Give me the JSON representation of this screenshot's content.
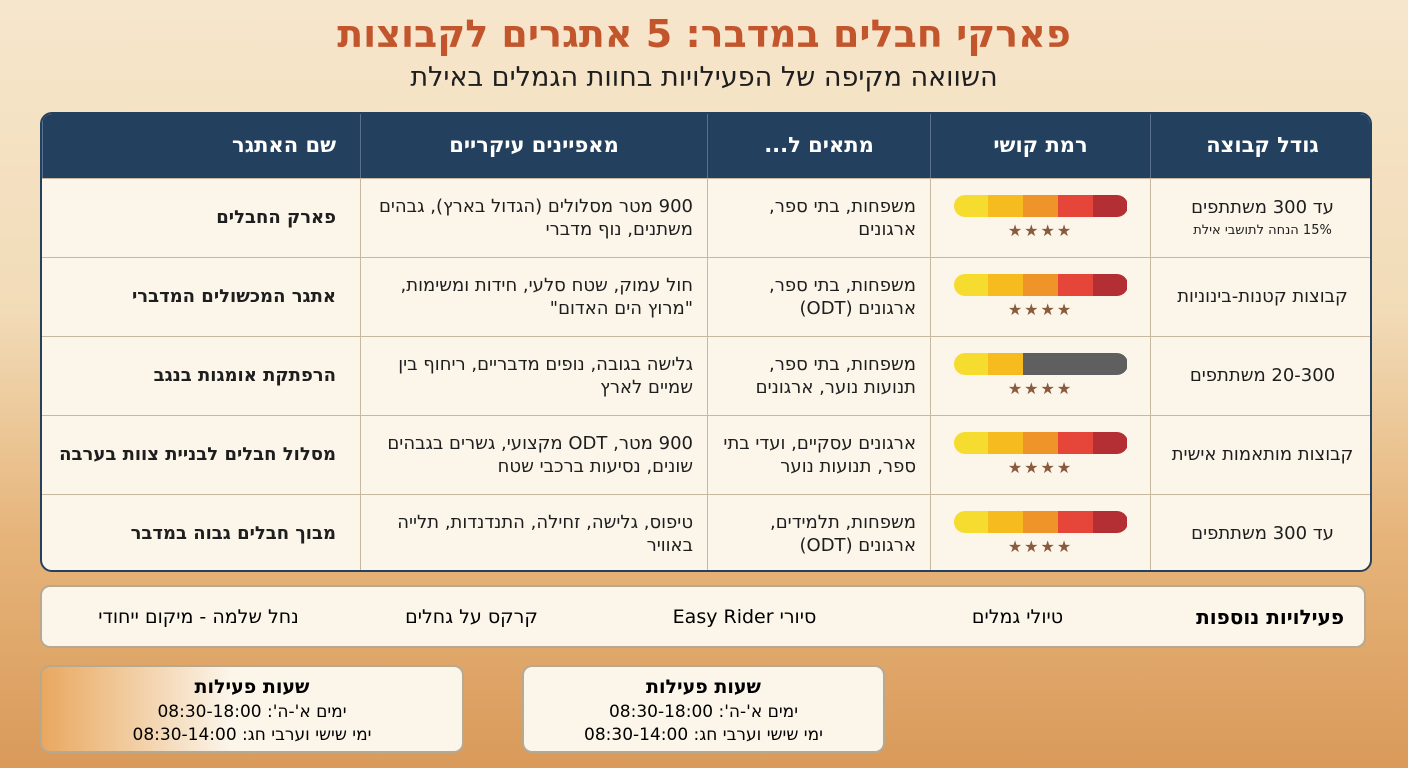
{
  "header": {
    "title": "פארקי חבלים במדבר: 5 אתגרים לקבוצות",
    "subtitle": "השוואה מקיפה של הפעילויות בחוות הגמלים באילת"
  },
  "table": {
    "columns": [
      "גודל קבוצה",
      "רמת קושי",
      "מתאים ל...",
      "מאפיינים עיקריים",
      "שם האתגר"
    ],
    "rows": [
      {
        "group_size": "עד 300 משתתפים",
        "note": "15% הנחה לתושבי אילת",
        "difficulty": 5,
        "stars": 4,
        "suitable": "משפחות, בתי ספר, ארגונים",
        "features": "900 מטר מסלולים (הגדול בארץ), גבהים משתנים, נוף מדברי",
        "name": "פארק החבלים"
      },
      {
        "group_size": "קבוצות קטנות-בינוניות",
        "difficulty": 5,
        "stars": 4,
        "suitable": "משפחות, בתי ספר, ארגונים (ODT)",
        "features": "חול עמוק, שטח סלעי, חידות ומשימות, \"מרוץ הים האדום\"",
        "name": "אתגר המכשולים המדברי"
      },
      {
        "group_size": "20-300 משתתפים",
        "difficulty": 2,
        "stars": 4,
        "suitable": "משפחות, בתי ספר, תנועות נוער, ארגונים",
        "features": "גלישה בגובה, נופים מדבריים, ריחוף בין שמיים לארץ",
        "name": "הרפתקת אומגות בנגב"
      },
      {
        "group_size": "קבוצות מותאמות אישית",
        "difficulty": 5,
        "stars": 4,
        "suitable": "ארגונים עסקיים, ועדי בתי ספר, תנועות נוער",
        "features": "900 מטר, ODT מקצועי, גשרים בגבהים שונים, נסיעות ברכבי שטח",
        "name": "מסלול חבלים לבניית צוות בערבה"
      },
      {
        "group_size": "עד 300 משתתפים",
        "difficulty": 5,
        "stars": 4,
        "suitable": "משפחות, תלמידים, ארגונים (ODT)",
        "features": "טיפוס, גלישה, זחילה, התנדנדות, תלייה באוויר",
        "name": "מבוך חבלים גבוה במדבר"
      }
    ]
  },
  "extras": {
    "title": "פעילויות נוספות",
    "items": [
      "טיולי גמלים",
      "סיורי Easy Rider",
      "קרקס על גחלים",
      "נחל שלמה - מיקום ייחודי"
    ]
  },
  "hours": [
    {
      "title": "שעות פעילות",
      "weekdays": "ימים א'-ה': 08:30-18:00",
      "friday": "ימי שישי וערבי חג: 08:30-14:00"
    },
    {
      "title": "שעות פעילות",
      "weekdays": "ימים א'-ה': 08:30-18:00",
      "friday": "ימי שישי וערבי חג: 08:30-14:00"
    }
  ]
}
